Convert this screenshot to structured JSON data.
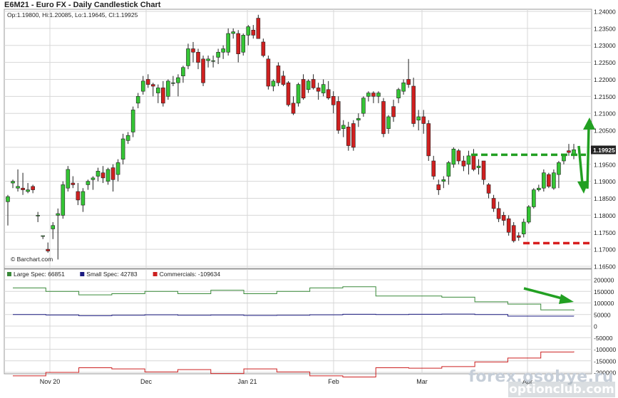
{
  "title": "E6M21 - Euro FX - Daily Candlestick Chart",
  "ohlc_label": "Op:1.19800, Hi:1.20085, Lo:1.19645, Cl:1.19925",
  "source": "© Barchart.com",
  "last_price_label": "1.19925",
  "watermark": {
    "line1": "forex.osobye.ru",
    "line2": "optionclub.com"
  },
  "colors": {
    "up": "#35c535",
    "down": "#d02020",
    "grid": "#d7d7d7",
    "arrow": "#22a022",
    "support": "#d81e1e",
    "large": "#3a8a3a",
    "small": "#1a1a80",
    "comm": "#cc2020"
  },
  "chart_data": [
    {
      "type": "candlestick",
      "ylim": [
        1.165,
        1.24
      ],
      "y_ticks": [
        "1.24000",
        "1.23500",
        "1.23000",
        "1.22500",
        "1.22000",
        "1.21500",
        "1.21000",
        "1.20500",
        "1.20000",
        "1.19500",
        "1.19000",
        "1.18500",
        "1.18000",
        "1.17500",
        "1.17000",
        "1.16500"
      ],
      "x_labels": [
        "Nov 20",
        "Dec",
        "Jan 21",
        "Feb",
        "Mar",
        "Apr"
      ],
      "candles": [
        [
          1.184,
          1.186,
          1.177,
          1.1855
        ],
        [
          1.1895,
          1.1905,
          1.188,
          1.19
        ],
        [
          1.188,
          1.1935,
          1.187,
          1.1885
        ],
        [
          1.188,
          1.1925,
          1.186,
          1.1875
        ],
        [
          1.187,
          1.1895,
          1.1865,
          1.1875
        ],
        [
          1.1885,
          1.189,
          1.1865,
          1.1875
        ],
        [
          1.18,
          1.181,
          1.178,
          1.18
        ],
        [
          1.174,
          1.174,
          1.173,
          1.174
        ],
        [
          1.17,
          1.172,
          1.169,
          1.1695
        ],
        [
          1.176,
          1.178,
          1.173,
          1.177
        ],
        [
          1.18,
          1.182,
          1.167,
          1.1805
        ],
        [
          1.18,
          1.19,
          1.179,
          1.189
        ],
        [
          1.188,
          1.1945,
          1.187,
          1.1935
        ],
        [
          1.1895,
          1.1915,
          1.188,
          1.189
        ],
        [
          1.187,
          1.1895,
          1.183,
          1.1845
        ],
        [
          1.183,
          1.188,
          1.181,
          1.187
        ],
        [
          1.189,
          1.1905,
          1.1875,
          1.19
        ],
        [
          1.1905,
          1.1915,
          1.1875,
          1.191
        ],
        [
          1.1915,
          1.194,
          1.19,
          1.193
        ],
        [
          1.1925,
          1.1945,
          1.1895,
          1.191
        ],
        [
          1.19,
          1.194,
          1.189,
          1.1935
        ],
        [
          1.194,
          1.195,
          1.187,
          1.1905
        ],
        [
          1.192,
          1.1965,
          1.19,
          1.1955
        ],
        [
          1.1965,
          1.204,
          1.195,
          1.2025
        ],
        [
          1.202,
          1.2045,
          1.201,
          1.2035
        ],
        [
          1.2045,
          1.212,
          1.203,
          1.211
        ],
        [
          1.213,
          1.216,
          1.2115,
          1.215
        ],
        [
          1.2165,
          1.221,
          1.2155,
          1.2195
        ],
        [
          1.22,
          1.2215,
          1.2175,
          1.2185
        ],
        [
          1.2185,
          1.219,
          1.215,
          1.218
        ],
        [
          1.216,
          1.2185,
          1.213,
          1.2175
        ],
        [
          1.2175,
          1.2195,
          1.212,
          1.213
        ],
        [
          1.215,
          1.22,
          1.214,
          1.2195
        ],
        [
          1.219,
          1.221,
          1.218,
          1.219
        ],
        [
          1.219,
          1.2215,
          1.215,
          1.2205
        ],
        [
          1.221,
          1.224,
          1.219,
          1.2235
        ],
        [
          1.224,
          1.2305,
          1.223,
          1.229
        ],
        [
          1.229,
          1.231,
          1.225,
          1.228
        ],
        [
          1.228,
          1.229,
          1.223,
          1.225
        ],
        [
          1.226,
          1.227,
          1.218,
          1.219
        ],
        [
          1.2255,
          1.227,
          1.2235,
          1.226
        ],
        [
          1.2255,
          1.227,
          1.2235,
          1.2255
        ],
        [
          1.2265,
          1.229,
          1.2245,
          1.228
        ],
        [
          1.228,
          1.23,
          1.226,
          1.229
        ],
        [
          1.228,
          1.235,
          1.227,
          1.2335
        ],
        [
          1.2335,
          1.235,
          1.232,
          1.234
        ],
        [
          1.2335,
          1.2345,
          1.225,
          1.2275
        ],
        [
          1.228,
          1.2335,
          1.227,
          1.233
        ],
        [
          1.233,
          1.236,
          1.23,
          1.2355
        ],
        [
          1.2345,
          1.236,
          1.232,
          1.233
        ],
        [
          1.238,
          1.239,
          1.232,
          1.232
        ],
        [
          1.231,
          1.232,
          1.2265,
          1.227
        ],
        [
          1.226,
          1.227,
          1.217,
          1.218
        ],
        [
          1.218,
          1.22,
          1.2165,
          1.2195
        ],
        [
          1.224,
          1.225,
          1.218,
          1.219
        ],
        [
          1.221,
          1.2225,
          1.218,
          1.2185
        ],
        [
          1.219,
          1.2195,
          1.212,
          1.2125
        ],
        [
          1.213,
          1.215,
          1.2095,
          1.21
        ],
        [
          1.213,
          1.219,
          1.212,
          1.2185
        ],
        [
          1.22,
          1.2215,
          1.214,
          1.2145
        ],
        [
          1.217,
          1.22,
          1.216,
          1.2195
        ],
        [
          1.22,
          1.2215,
          1.217,
          1.2175
        ],
        [
          1.2175,
          1.219,
          1.214,
          1.2165
        ],
        [
          1.216,
          1.22,
          1.215,
          1.2185
        ],
        [
          1.217,
          1.2195,
          1.214,
          1.2145
        ],
        [
          1.215,
          1.2165,
          1.21,
          1.2125
        ],
        [
          1.2135,
          1.215,
          1.204,
          1.205
        ],
        [
          1.2055,
          1.208,
          1.203,
          1.2065
        ],
        [
          1.206,
          1.2075,
          1.199,
          1.2005
        ],
        [
          1.207,
          1.208,
          1.199,
          1.2
        ],
        [
          1.208,
          1.21,
          1.206,
          1.2085
        ],
        [
          1.21,
          1.215,
          1.209,
          1.2145
        ],
        [
          1.215,
          1.2165,
          1.2135,
          1.216
        ],
        [
          1.216,
          1.2165,
          1.213,
          1.215
        ],
        [
          1.215,
          1.2165,
          1.213,
          1.216
        ],
        [
          1.2135,
          1.2145,
          1.203,
          1.204
        ],
        [
          1.2055,
          1.2095,
          1.204,
          1.209
        ],
        [
          1.212,
          1.214,
          1.2075,
          1.209
        ],
        [
          1.2145,
          1.2175,
          1.213,
          1.217
        ],
        [
          1.2165,
          1.22,
          1.2155,
          1.219
        ],
        [
          1.22,
          1.226,
          1.2175,
          1.2185
        ],
        [
          1.218,
          1.2205,
          1.206,
          1.207
        ],
        [
          1.208,
          1.211,
          1.205,
          1.209
        ],
        [
          1.209,
          1.211,
          1.204,
          1.207
        ],
        [
          1.207,
          1.208,
          1.196,
          1.1975
        ],
        [
          1.196,
          1.1975,
          1.1905,
          1.1915
        ],
        [
          1.189,
          1.1905,
          1.186,
          1.1875
        ],
        [
          1.19,
          1.1915,
          1.188,
          1.1905
        ],
        [
          1.1915,
          1.196,
          1.189,
          1.1955
        ],
        [
          1.195,
          1.2,
          1.194,
          1.1995
        ],
        [
          1.199,
          1.1995,
          1.195,
          1.196
        ],
        [
          1.196,
          1.1975,
          1.193,
          1.1945
        ],
        [
          1.195,
          1.199,
          1.192,
          1.1975
        ],
        [
          1.198,
          1.1995,
          1.193,
          1.1935
        ],
        [
          1.194,
          1.1965,
          1.192,
          1.1945
        ],
        [
          1.196,
          1.196,
          1.189,
          1.1905
        ],
        [
          1.189,
          1.1895,
          1.185,
          1.1865
        ],
        [
          1.185,
          1.186,
          1.181,
          1.182
        ],
        [
          1.182,
          1.184,
          1.178,
          1.179
        ],
        [
          1.18,
          1.181,
          1.177,
          1.1785
        ],
        [
          1.179,
          1.18,
          1.174,
          1.175
        ],
        [
          1.177,
          1.178,
          1.172,
          1.1725
        ],
        [
          1.174,
          1.175,
          1.1725,
          1.1735
        ],
        [
          1.1745,
          1.179,
          1.1735,
          1.178
        ],
        [
          1.178,
          1.183,
          1.1775,
          1.1825
        ],
        [
          1.1825,
          1.188,
          1.182,
          1.1875
        ],
        [
          1.1875,
          1.189,
          1.187,
          1.188
        ],
        [
          1.188,
          1.1935,
          1.187,
          1.1925
        ],
        [
          1.192,
          1.1925,
          1.188,
          1.1885
        ],
        [
          1.188,
          1.1935,
          1.1875,
          1.1925
        ],
        [
          1.192,
          1.196,
          1.188,
          1.1955
        ],
        [
          1.196,
          1.198,
          1.195,
          1.1975
        ],
        [
          1.199,
          1.201,
          1.1975,
          1.1985
        ],
        [
          1.198,
          1.201,
          1.1965,
          1.1993
        ]
      ]
    },
    {
      "type": "line",
      "ylim": [
        -200000,
        200000
      ],
      "y_ticks": [
        "200000",
        "150000",
        "100000",
        "50000",
        "0",
        "-50000",
        "-100000",
        "-150000",
        "-200000"
      ],
      "legend": [
        {
          "label": "Large Spec: 66851",
          "color": "#3a8a3a"
        },
        {
          "label": "Small Spec: 42783",
          "color": "#1a1a80"
        },
        {
          "label": "Commercials: -109634",
          "color": "#cc2020"
        }
      ],
      "series": [
        {
          "name": "Large Spec",
          "values": [
            165000,
            165000,
            150000,
            150000,
            135000,
            135000,
            140000,
            140000,
            150000,
            150000,
            140000,
            140000,
            155000,
            155000,
            140000,
            140000,
            150000,
            150000,
            165000,
            165000,
            170000,
            170000,
            130000,
            130000,
            130000,
            130000,
            125000,
            125000,
            105000,
            105000,
            95000,
            95000,
            70000,
            70000,
            66851
          ]
        },
        {
          "name": "Small Spec",
          "values": [
            50000,
            50000,
            48000,
            48000,
            45000,
            45000,
            47000,
            47000,
            49000,
            49000,
            47000,
            47000,
            48000,
            48000,
            46000,
            46000,
            47000,
            47000,
            49000,
            49000,
            51000,
            51000,
            50000,
            50000,
            51000,
            51000,
            52000,
            52000,
            50000,
            50000,
            43000,
            43000,
            43000,
            43000,
            42783
          ]
        },
        {
          "name": "Commercials",
          "values": [
            -215000,
            -215000,
            -200000,
            -200000,
            -180000,
            -180000,
            -185000,
            -185000,
            -198000,
            -198000,
            -188000,
            -188000,
            -205000,
            -205000,
            -185000,
            -185000,
            -198000,
            -198000,
            -215000,
            -215000,
            -220000,
            -220000,
            -180000,
            -180000,
            -182000,
            -182000,
            -175000,
            -175000,
            -155000,
            -155000,
            -138000,
            -138000,
            -112000,
            -112000,
            -109634
          ]
        }
      ]
    }
  ]
}
